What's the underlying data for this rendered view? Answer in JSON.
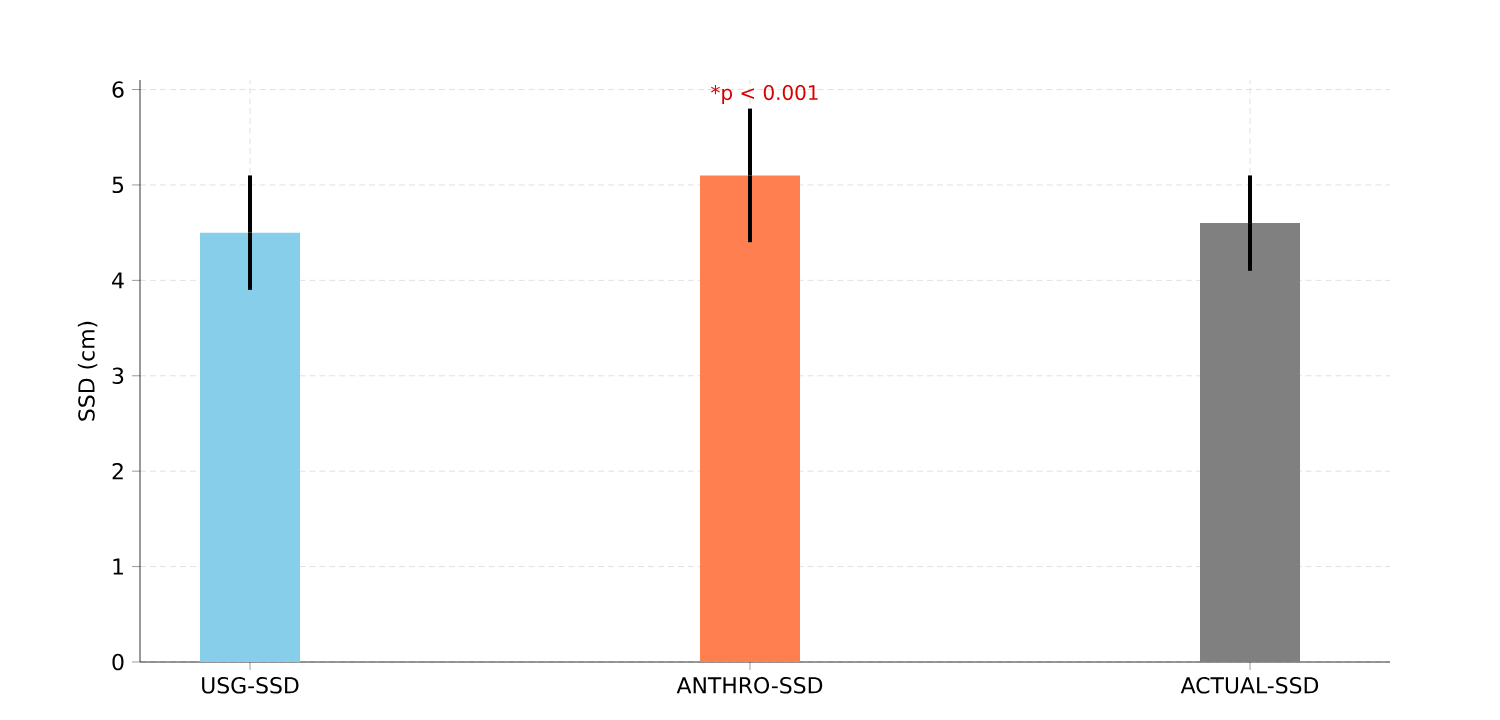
{
  "chart_data": {
    "type": "bar",
    "ylabel": "SSD (cm)",
    "categories": [
      "USG-SSD",
      "ANTHRO-SSD",
      "ACTUAL-SSD"
    ],
    "values": [
      4.5,
      5.1,
      4.6
    ],
    "colors": [
      "#87ceeb",
      "#ff7f50",
      "#808080"
    ],
    "errors": [
      [
        3.9,
        5.1
      ],
      [
        4.4,
        5.8
      ],
      [
        4.1,
        5.1
      ]
    ],
    "ylim": [
      0,
      6.1
    ],
    "yticks": [
      0,
      1,
      2,
      3,
      4,
      5,
      6
    ],
    "grid": true,
    "annotations": [
      "*p < 0.001"
    ]
  }
}
